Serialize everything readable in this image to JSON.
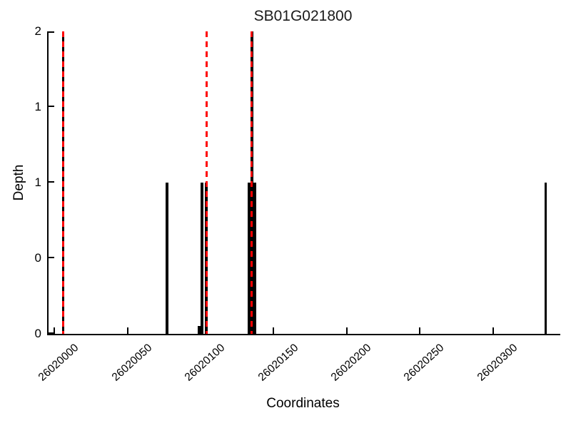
{
  "chart_data": {
    "type": "bar",
    "title": "SB01G021800",
    "xlabel": "Coordinates",
    "ylabel": "Depth",
    "xlim": [
      26019996,
      26020346
    ],
    "ylim": [
      0,
      2
    ],
    "grid": false,
    "legend": null,
    "bar_color": "#000000",
    "marker_color": "#ff0000",
    "axis_color": "#000000",
    "x_ticks": {
      "values": [
        26020000,
        26020050,
        26020100,
        26020150,
        26020200,
        26020250,
        26020300
      ],
      "labels": [
        "26020000",
        "26020050",
        "26020100",
        "26020150",
        "26020200",
        "26020250",
        "26020300"
      ],
      "rotation_deg": -42
    },
    "y_ticks": {
      "values": [
        0,
        0.5,
        1,
        1.5,
        2
      ],
      "labels": [
        "0",
        "0",
        "1",
        "1",
        "2"
      ]
    },
    "bars": [
      {
        "coord": 26020006,
        "depth": 2
      },
      {
        "coord": 26020077,
        "depth": 1
      },
      {
        "coord": 26020099,
        "depth": 0.05
      },
      {
        "coord": 26020101,
        "depth": 1
      },
      {
        "coord": 26020104,
        "depth": 1
      },
      {
        "coord": 26020133,
        "depth": 1
      },
      {
        "coord": 26020134,
        "depth": 1
      },
      {
        "coord": 26020135,
        "depth": 2
      },
      {
        "coord": 26020136,
        "depth": 1
      },
      {
        "coord": 26020137,
        "depth": 1
      },
      {
        "coord": 26020336,
        "depth": 1
      }
    ],
    "markers": [
      {
        "coord": 26020006,
        "style": "red-dashed-vertical"
      },
      {
        "coord": 26020104,
        "style": "red-dashed-vertical"
      },
      {
        "coord": 26020135,
        "style": "red-dashed-vertical"
      }
    ]
  }
}
